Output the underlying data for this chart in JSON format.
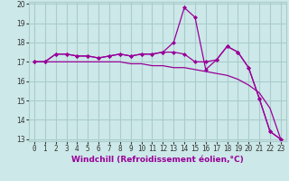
{
  "title": "",
  "xlabel": "Windchill (Refroidissement éolien,°C)",
  "x": [
    0,
    1,
    2,
    3,
    4,
    5,
    6,
    7,
    8,
    9,
    10,
    11,
    12,
    13,
    14,
    15,
    16,
    17,
    18,
    19,
    20,
    21,
    22,
    23
  ],
  "line1": [
    17.0,
    17.0,
    17.4,
    17.4,
    17.3,
    17.3,
    17.2,
    17.3,
    17.4,
    17.3,
    17.4,
    17.4,
    17.5,
    17.5,
    17.4,
    17.0,
    17.0,
    17.1,
    17.8,
    17.5,
    16.7,
    15.1,
    13.4,
    13.0
  ],
  "line2": [
    17.0,
    17.0,
    17.4,
    17.4,
    17.3,
    17.3,
    17.2,
    17.3,
    17.4,
    17.3,
    17.4,
    17.4,
    17.5,
    18.0,
    19.8,
    19.3,
    16.6,
    17.1,
    17.8,
    17.5,
    16.7,
    15.1,
    13.4,
    13.0
  ],
  "line3": [
    17.0,
    17.0,
    17.0,
    17.0,
    17.0,
    17.0,
    17.0,
    17.0,
    17.0,
    16.9,
    16.9,
    16.8,
    16.8,
    16.7,
    16.7,
    16.6,
    16.5,
    16.4,
    16.3,
    16.1,
    15.8,
    15.4,
    14.6,
    13.0
  ],
  "line_color": "#990099",
  "bg_color": "#cce8e8",
  "grid_color": "#aacccc",
  "ylim": [
    13,
    20
  ],
  "yticks": [
    13,
    14,
    15,
    16,
    17,
    18,
    19,
    20
  ],
  "xlim_min": -0.5,
  "xlim_max": 23.5,
  "tick_fontsize": 5.5,
  "xlabel_fontsize": 6.5
}
